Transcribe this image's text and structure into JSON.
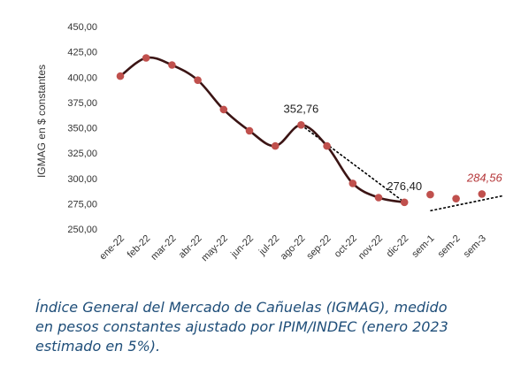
{
  "chart_data": {
    "type": "line",
    "ylabel": "IGMAG en $ constantes",
    "xlabel": "",
    "ylim": [
      250,
      450
    ],
    "yticks": [
      "250,00",
      "275,00",
      "300,00",
      "325,00",
      "350,00",
      "375,00",
      "400,00",
      "425,00",
      "450,00"
    ],
    "ytick_values": [
      250,
      275,
      300,
      325,
      350,
      375,
      400,
      425,
      450
    ],
    "categories": [
      "ene-22",
      "feb-22",
      "mar-22",
      "abr-22",
      "may-22",
      "jun-22",
      "jul-22",
      "ago-22",
      "sep-22",
      "oct-22",
      "nov-22",
      "dic-22",
      "sem-1",
      "sem-2",
      "sem-3"
    ],
    "series": [
      {
        "values": [
          401,
          419,
          412,
          397,
          368,
          347,
          332,
          352.76,
          332,
          295,
          281,
          276.4,
          284,
          280,
          284.56
        ],
        "color": "#c0504d",
        "line_color": "#3b1414",
        "solid_until_index": 11
      }
    ],
    "annotations": [
      {
        "index": 7,
        "text": "352,76",
        "style": "normal"
      },
      {
        "index": 11,
        "text": "276,40",
        "style": "normal"
      },
      {
        "index": 14,
        "text": "284,56",
        "style": "estimate"
      }
    ],
    "trendlines": [
      {
        "from": [
          7,
          352.76
        ],
        "to": [
          11,
          276.4
        ]
      },
      {
        "from": [
          12,
          268
        ],
        "to": [
          14.85,
          283
        ]
      }
    ],
    "grid": false,
    "legend": "none"
  },
  "caption": {
    "line1": "Índice General del Mercado de Cañuelas (IGMAG), medido",
    "line2": "en pesos constantes ajustado por IPIM/INDEC (enero 2023",
    "line3": "estimado en 5%)."
  }
}
